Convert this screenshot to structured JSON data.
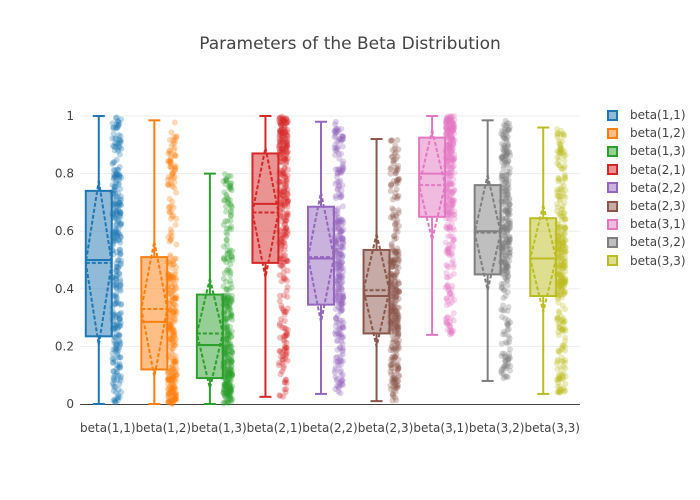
{
  "chart_data": {
    "type": "box",
    "title": "Parameters of the Beta Distribution",
    "xlabel": "",
    "ylabel": "",
    "ylim": [
      0,
      1
    ],
    "y_ticks": [
      "0",
      "0.2",
      "0.4",
      "0.6",
      "0.8",
      "1"
    ],
    "grid": true,
    "legend_position": "right",
    "box_style": "box with mean dashed line, standard deviation diamond, and jittered points",
    "categories": [
      "beta(1,1)",
      "beta(1,2)",
      "beta(1,3)",
      "beta(2,1)",
      "beta(2,2)",
      "beta(2,3)",
      "beta(3,1)",
      "beta(3,2)",
      "beta(3,3)"
    ],
    "series": [
      {
        "name": "beta(1,1)",
        "color": "#1f77b4",
        "min": 0.0,
        "q1": 0.235,
        "median": 0.5,
        "q3": 0.74,
        "max": 1.0,
        "mean": 0.49,
        "sd": 0.285
      },
      {
        "name": "beta(1,2)",
        "color": "#ff7f0e",
        "min": 0.0,
        "q1": 0.12,
        "median": 0.285,
        "q3": 0.51,
        "max": 0.985,
        "mean": 0.33,
        "sd": 0.235
      },
      {
        "name": "beta(1,3)",
        "color": "#2ca02c",
        "min": 0.0,
        "q1": 0.09,
        "median": 0.205,
        "q3": 0.38,
        "max": 0.8,
        "mean": 0.245,
        "sd": 0.19
      },
      {
        "name": "beta(2,1)",
        "color": "#d62728",
        "min": 0.025,
        "q1": 0.49,
        "median": 0.695,
        "q3": 0.87,
        "max": 1.0,
        "mean": 0.665,
        "sd": 0.225
      },
      {
        "name": "beta(2,2)",
        "color": "#9467bd",
        "min": 0.035,
        "q1": 0.345,
        "median": 0.505,
        "q3": 0.685,
        "max": 0.98,
        "mean": 0.51,
        "sd": 0.225
      },
      {
        "name": "beta(2,3)",
        "color": "#8c564b",
        "min": 0.01,
        "q1": 0.245,
        "median": 0.375,
        "q3": 0.535,
        "max": 0.92,
        "mean": 0.395,
        "sd": 0.195
      },
      {
        "name": "beta(3,1)",
        "color": "#e377c2",
        "min": 0.24,
        "q1": 0.65,
        "median": 0.8,
        "q3": 0.925,
        "max": 1.0,
        "mean": 0.76,
        "sd": 0.19
      },
      {
        "name": "beta(3,2)",
        "color": "#7f7f7f",
        "min": 0.08,
        "q1": 0.45,
        "median": 0.6,
        "q3": 0.76,
        "max": 0.985,
        "mean": 0.595,
        "sd": 0.2
      },
      {
        "name": "beta(3,3)",
        "color": "#bcbd22",
        "min": 0.035,
        "q1": 0.375,
        "median": 0.505,
        "q3": 0.645,
        "max": 0.96,
        "mean": 0.505,
        "sd": 0.185
      }
    ]
  }
}
